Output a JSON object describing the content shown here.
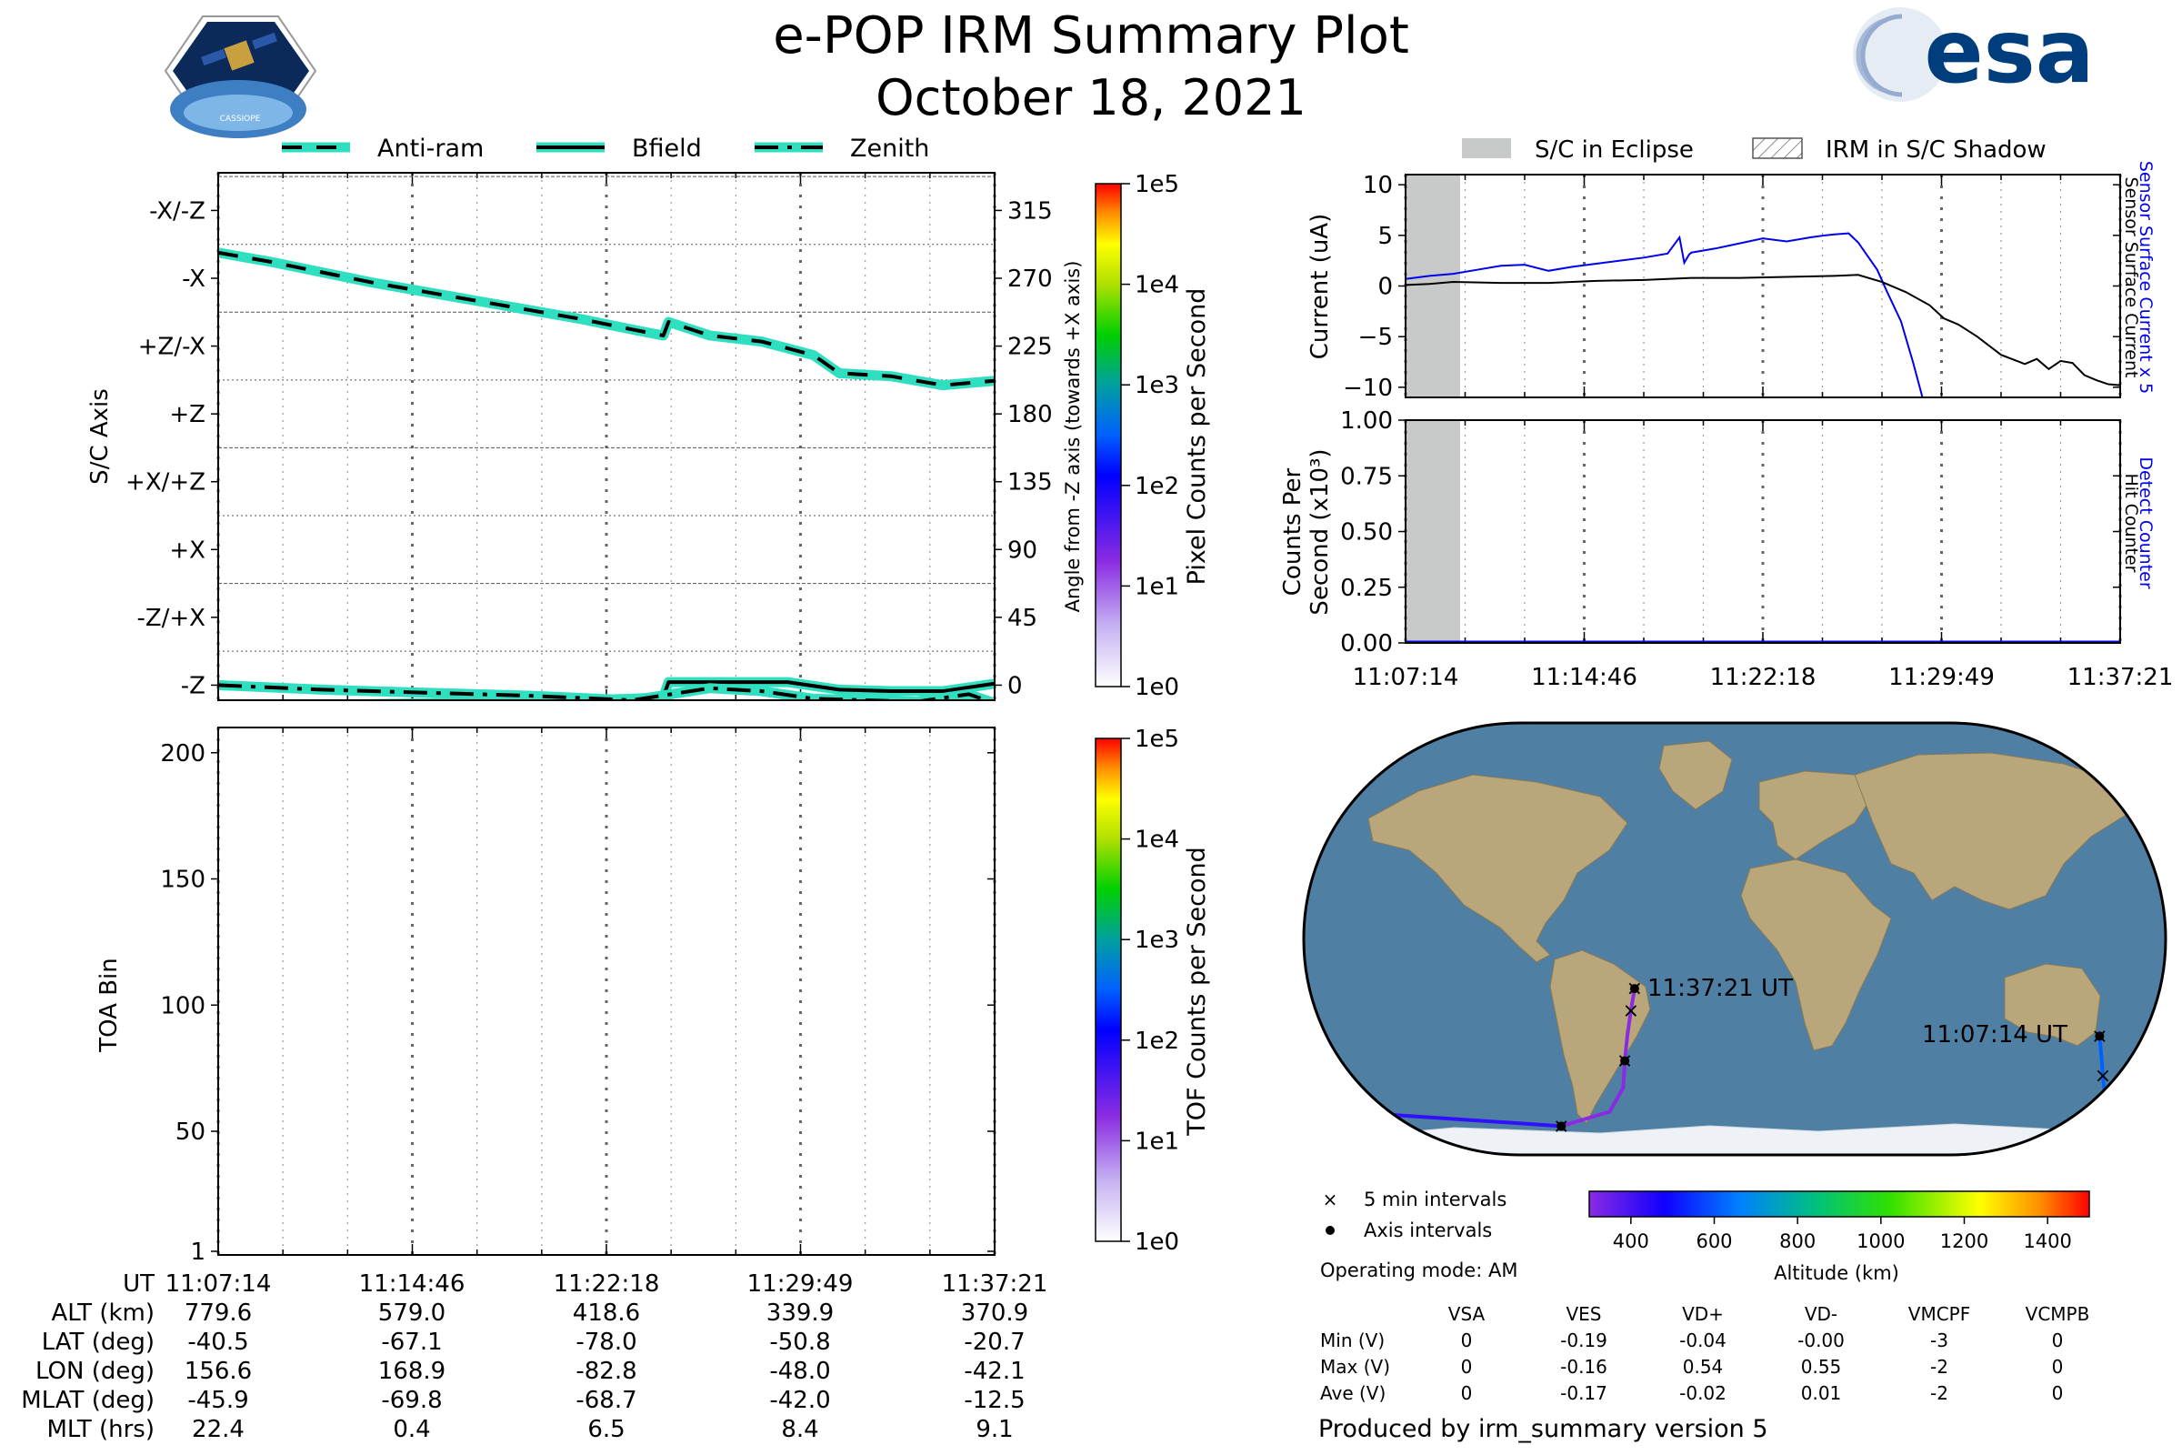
{
  "header": {
    "title": "e-POP IRM Summary Plot",
    "date": "October 18, 2021",
    "logo_left_text": "CASSIOPE",
    "logo_right_text": "esa"
  },
  "colors": {
    "trace_glow": "#2fe0c0",
    "current_blue": "#0000ee",
    "eclipse_gray": "#c8cac9",
    "ocean": "#4f7fa3",
    "land": "#b9a67a",
    "ice": "#eef2f6"
  },
  "attitude_legend": [
    "Anti-ram",
    "Bfield",
    "Zenith"
  ],
  "attitude_panel": {
    "ylabel": "S/C Axis",
    "y2label": "Angle from -Z axis (towards +X axis)",
    "y_tick_labels": [
      "-X/-Z",
      "-X",
      "+Z/-X",
      "+Z",
      "+X/+Z",
      "+X",
      "-Z/+X",
      "-Z"
    ],
    "y2_tick_labels": [
      "315",
      "270",
      "225",
      "180",
      "135",
      "90",
      "45",
      "0"
    ],
    "colorbar_label": "Pixel Counts per Second",
    "colorbar_ticks": [
      "1e5",
      "1e4",
      "1e3",
      "1e2",
      "1e1",
      "1e0"
    ]
  },
  "toa_panel": {
    "ylabel": "TOA Bin",
    "y_tick_labels": [
      "200",
      "150",
      "100",
      "50",
      "1"
    ],
    "colorbar_label": "TOF Counts per Second",
    "colorbar_ticks": [
      "1e5",
      "1e4",
      "1e3",
      "1e2",
      "1e1",
      "1e0"
    ]
  },
  "ephemeris": {
    "row_labels": [
      "UT",
      "ALT (km)",
      "LAT (deg)",
      "LON (deg)",
      "MLAT (deg)",
      "MLT (hrs)"
    ],
    "columns": [
      [
        "11:07:14",
        "779.6",
        "-40.5",
        "156.6",
        "-45.9",
        "22.4"
      ],
      [
        "11:14:46",
        "579.0",
        "-67.1",
        "168.9",
        "-69.8",
        "0.4"
      ],
      [
        "11:22:18",
        "418.6",
        "-78.0",
        "-82.8",
        "-68.7",
        "6.5"
      ],
      [
        "11:29:49",
        "339.9",
        "-50.8",
        "-48.0",
        "-42.0",
        "8.4"
      ],
      [
        "11:37:21",
        "370.9",
        "-20.7",
        "-42.1",
        "-12.5",
        "9.1"
      ]
    ]
  },
  "current_panel": {
    "legend": [
      "S/C in Eclipse",
      "IRM in S/C Shadow"
    ],
    "ylabel": "Current (uA)",
    "y_tick_labels": [
      "10",
      "5",
      "0",
      "−5",
      "−10"
    ],
    "right_label_blue": "Sensor Surface Current x 5",
    "right_label_black": "Sensor Surface Current"
  },
  "counts_panel": {
    "ylabel_line1": "Counts Per",
    "ylabel_line2": "Second (x10³)",
    "y_tick_labels": [
      "1.00",
      "0.75",
      "0.50",
      "0.25",
      "0.00"
    ],
    "right_label_blue": "Detect Counter",
    "right_label_black": "Hit Counter",
    "x_tick_labels": [
      "11:07:14",
      "11:14:46",
      "11:22:18",
      "11:29:49",
      "11:37:21"
    ]
  },
  "map_panel": {
    "end_label": "11:37:21 UT",
    "start_label": "11:07:14 UT",
    "legend_5min": "5 min intervals",
    "legend_axis": "Axis intervals",
    "operating_mode": "Operating mode: AM",
    "altitude_label": "Altitude (km)",
    "altitude_ticks": [
      "400",
      "600",
      "800",
      "1000",
      "1200",
      "1400"
    ]
  },
  "voltage_table": {
    "headers": [
      "VSA",
      "VES",
      "VD+",
      "VD-",
      "VMCPF",
      "VCMPB"
    ],
    "rows": [
      {
        "label": "Min (V)",
        "values": [
          "0",
          "-0.19",
          "-0.04",
          "-0.00",
          "-3",
          "0"
        ]
      },
      {
        "label": "Max (V)",
        "values": [
          "0",
          "-0.16",
          "0.54",
          "0.55",
          "-2",
          "0"
        ]
      },
      {
        "label": "Ave (V)",
        "values": [
          "0",
          "-0.17",
          "-0.02",
          "0.01",
          "-2",
          "0"
        ]
      }
    ]
  },
  "footer": "Produced by irm_summary version 5",
  "chart_data": [
    {
      "type": "line",
      "title": "",
      "xlabel": "",
      "ylabel": "S/C Axis",
      "x_ticks": [
        "11:07:14",
        "11:14:46",
        "11:22:18",
        "11:29:49",
        "11:37:21"
      ],
      "ylim": [
        -10,
        340
      ],
      "series": [
        {
          "name": "Anti-ram",
          "x": [
            0,
            2,
            4,
            6,
            8,
            10,
            12,
            14,
            16,
            17.2,
            17.4,
            19,
            21,
            23,
            24,
            26,
            28,
            30
          ],
          "y": [
            287,
            281,
            274,
            267,
            261,
            255,
            249,
            243,
            236,
            232,
            241,
            232,
            228,
            219,
            207,
            205,
            199,
            202
          ]
        },
        {
          "name": "Bfield",
          "x": [
            0,
            4,
            8,
            12,
            16,
            17.2,
            17.4,
            20,
            22,
            24,
            26,
            28,
            30
          ],
          "y": [
            -13,
            -13,
            -12,
            -11,
            -9,
            -8,
            2,
            2,
            2,
            -3,
            -4,
            -4,
            1
          ]
        },
        {
          "name": "Zenith",
          "x": [
            0,
            4,
            8,
            12,
            16,
            19,
            21,
            23,
            25,
            27,
            29,
            30
          ],
          "y": [
            0,
            -3,
            -5,
            -7,
            -10,
            -2,
            -4,
            -9,
            -10,
            -11,
            -6,
            -12
          ]
        }
      ]
    },
    {
      "type": "heatmap",
      "title": "",
      "xlabel": "",
      "ylabel": "TOA Bin",
      "x_ticks": [
        "11:07:14",
        "11:14:46",
        "11:22:18",
        "11:29:49",
        "11:37:21"
      ],
      "ylim": [
        1,
        210
      ],
      "values": []
    },
    {
      "type": "line",
      "title": "",
      "xlabel": "",
      "ylabel": "Current (uA)",
      "ylim": [
        -11,
        11
      ],
      "x_ticks": [
        "11:07:14",
        "11:14:46",
        "11:22:18",
        "11:29:49",
        "11:37:21"
      ],
      "series": [
        {
          "name": "Sensor Surface Current x 5",
          "x": [
            0,
            1,
            2,
            3,
            4,
            5,
            6,
            7,
            8,
            9,
            10,
            11,
            11.5,
            11.7,
            11.9,
            12,
            13,
            14,
            15,
            16,
            17,
            17.6,
            18,
            18.6,
            19,
            19.8,
            20.2,
            20.8,
            21.3,
            21.7
          ],
          "y": [
            0.7,
            1.0,
            1.2,
            1.6,
            2.0,
            2.1,
            1.5,
            1.9,
            2.2,
            2.5,
            2.8,
            3.2,
            4.8,
            2.3,
            3.1,
            3.3,
            3.7,
            4.2,
            4.7,
            4.4,
            4.8,
            5.0,
            5.1,
            5.2,
            4.3,
            1.6,
            -0.5,
            -3.5,
            -7.5,
            -11
          ]
        },
        {
          "name": "Sensor Surface Current",
          "x": [
            0,
            1,
            2,
            4,
            6,
            8,
            10,
            12,
            14,
            16,
            18,
            19,
            20,
            21,
            22,
            22.6,
            23.2,
            24,
            25,
            26,
            26.5,
            27,
            27.5,
            28,
            28.5,
            29,
            29.5,
            30
          ],
          "y": [
            0.1,
            0.2,
            0.4,
            0.3,
            0.3,
            0.5,
            0.6,
            0.8,
            0.8,
            0.9,
            1.0,
            1.1,
            0.4,
            -0.6,
            -1.9,
            -3.2,
            -3.8,
            -5.0,
            -6.8,
            -7.7,
            -7.2,
            -8.2,
            -7.4,
            -7.6,
            -8.8,
            -9.3,
            -9.7,
            -9.8
          ]
        }
      ]
    },
    {
      "type": "line",
      "title": "",
      "xlabel": "",
      "ylabel": "Counts Per Second (x10³)",
      "ylim": [
        0,
        1
      ],
      "x_ticks": [
        "11:07:14",
        "11:14:46",
        "11:22:18",
        "11:29:49",
        "11:37:21"
      ],
      "series": [
        {
          "name": "Detect Counter",
          "x": [
            0,
            30
          ],
          "y": [
            0,
            0
          ]
        },
        {
          "name": "Hit Counter",
          "x": [
            0,
            30
          ],
          "y": [
            0,
            0
          ]
        }
      ]
    },
    {
      "type": "scatter",
      "title": "",
      "xlabel": "",
      "ylabel": "",
      "points": [
        {
          "lon": 156.6,
          "lat": -40.5,
          "altitude_km": 780
        },
        {
          "lon": 160,
          "lat": -50,
          "altitude_km": 720
        },
        {
          "lon": 163,
          "lat": -57,
          "altitude_km": 670
        },
        {
          "lon": 168.9,
          "lat": -67.1,
          "altitude_km": 579
        },
        {
          "lon": -165,
          "lat": -73,
          "altitude_km": 500
        },
        {
          "lon": -82.8,
          "lat": -78.0,
          "altitude_km": 418.6
        },
        {
          "lon": -58,
          "lat": -72,
          "altitude_km": 380
        },
        {
          "lon": -50,
          "lat": -62,
          "altitude_km": 350
        },
        {
          "lon": -48.0,
          "lat": -50.8,
          "altitude_km": 339.9
        },
        {
          "lon": -46,
          "lat": -40,
          "altitude_km": 345
        },
        {
          "lon": -44,
          "lat": -30,
          "altitude_km": 355
        },
        {
          "lon": -42.1,
          "lat": -20.7,
          "altitude_km": 370.9
        }
      ],
      "colorbar_range": [
        300,
        1500
      ]
    }
  ]
}
